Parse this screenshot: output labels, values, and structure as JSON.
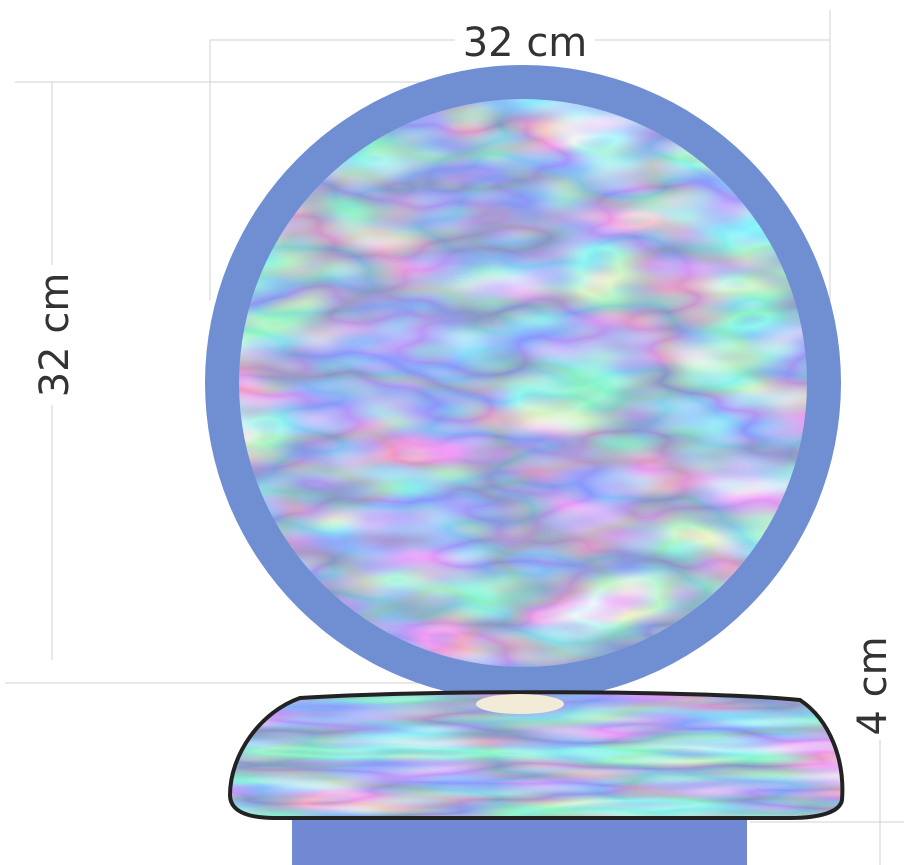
{
  "dimensions": {
    "disc_width": "32 cm",
    "disc_height": "32 cm",
    "base_height": "4 cm"
  },
  "colors": {
    "disc_frame": "#6f8fd2",
    "pattern_dark": "#3d4f8c",
    "pattern_mid": "#7d95d6",
    "pattern_light": "#e6ecfb",
    "base_outline": "#222222",
    "connector": "#f2ebd8",
    "pedestal": "#7189d2"
  }
}
